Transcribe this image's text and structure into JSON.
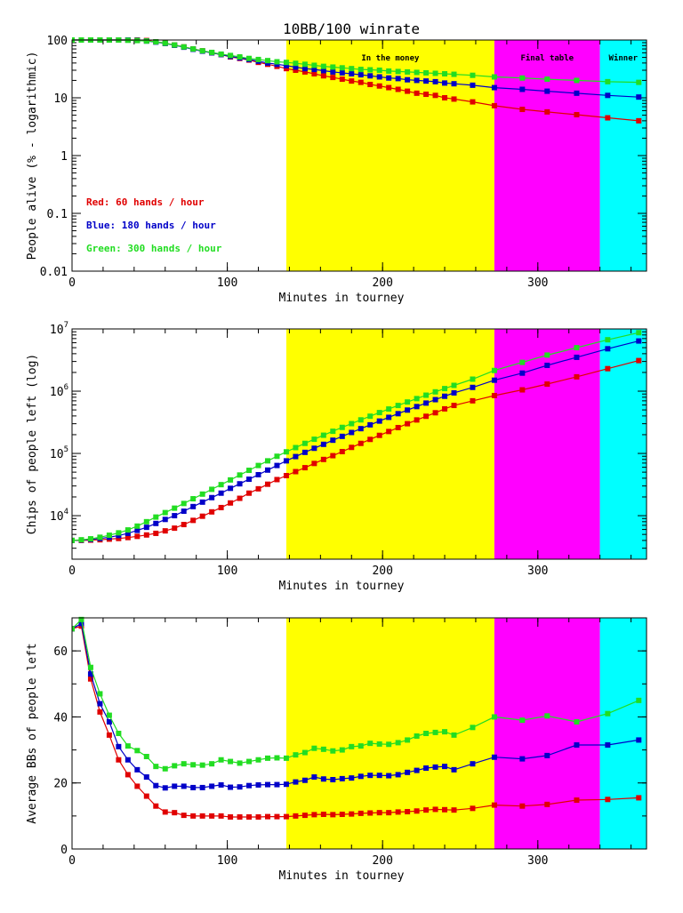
{
  "figure_title": "10BB/100 winrate",
  "chart_data": [
    {
      "type": "line",
      "title": "10BB/100 winrate",
      "xlabel": "Minutes in tourney",
      "ylabel": "People alive (% - logarithmic)",
      "yscale": "log",
      "xlim": [
        0,
        370
      ],
      "ylim": [
        0.01,
        100
      ],
      "x_ticks": [
        0,
        100,
        200,
        300
      ],
      "y_ticks": [
        0.01,
        0.1,
        1,
        10,
        100
      ],
      "y_tick_labels": [
        "0.01",
        "0.1",
        "1",
        "10",
        "100"
      ],
      "regions": [
        {
          "label": "In the money",
          "x0": 138,
          "x1": 272,
          "color": "#ffff00"
        },
        {
          "label": "Final table",
          "x0": 272,
          "x1": 340,
          "color": "#ff00ff"
        },
        {
          "label": "Winner",
          "x0": 340,
          "x1": 370,
          "color": "#00ffff"
        }
      ],
      "legend": [
        {
          "text": "Red: 60 hands / hour",
          "color": "#e00000"
        },
        {
          "text": "Blue: 180 hands / hour",
          "color": "#0000c8"
        },
        {
          "text": "Green: 300 hands / hour",
          "color": "#22dd22"
        }
      ],
      "series": [
        {
          "name": "Red",
          "color": "#e00000",
          "x": [
            0,
            6,
            12,
            18,
            24,
            30,
            36,
            42,
            48,
            54,
            60,
            66,
            72,
            78,
            84,
            90,
            96,
            102,
            108,
            114,
            120,
            126,
            132,
            138,
            144,
            150,
            156,
            162,
            168,
            174,
            180,
            186,
            192,
            198,
            204,
            210,
            216,
            222,
            228,
            234,
            240,
            246,
            258,
            272,
            290,
            306,
            325,
            345,
            365
          ],
          "y": [
            100,
            100,
            100,
            100,
            100,
            100,
            100,
            100,
            98,
            93,
            88,
            82,
            76,
            70,
            65,
            60,
            56,
            51,
            48,
            45,
            41,
            38,
            35,
            32,
            30,
            28,
            26,
            24,
            22.5,
            21,
            19.5,
            18.5,
            17,
            16,
            15,
            14,
            13,
            12,
            11.5,
            11,
            10,
            9.5,
            8.5,
            7.3,
            6.3,
            5.7,
            5.1,
            4.5,
            4.0
          ]
        },
        {
          "name": "Blue",
          "color": "#0000c8",
          "x": [
            0,
            6,
            12,
            18,
            24,
            30,
            36,
            42,
            48,
            54,
            60,
            66,
            72,
            78,
            84,
            90,
            96,
            102,
            108,
            114,
            120,
            126,
            132,
            138,
            144,
            150,
            156,
            162,
            168,
            174,
            180,
            186,
            192,
            198,
            204,
            210,
            216,
            222,
            228,
            234,
            240,
            246,
            258,
            272,
            290,
            306,
            325,
            345,
            365
          ],
          "y": [
            100,
            100,
            100,
            100,
            100,
            100,
            100,
            99,
            96,
            92,
            87,
            81,
            75,
            69,
            64,
            60,
            56,
            52,
            49,
            46,
            43,
            40,
            38,
            36,
            34,
            32,
            31,
            29.5,
            28,
            27,
            26,
            25,
            24,
            23,
            22,
            21.5,
            20.5,
            20,
            19.5,
            19,
            18,
            17.5,
            16.5,
            15,
            14,
            13,
            12,
            11,
            10.3
          ]
        },
        {
          "name": "Green",
          "color": "#22dd22",
          "x": [
            0,
            6,
            12,
            18,
            24,
            30,
            36,
            42,
            48,
            54,
            60,
            66,
            72,
            78,
            84,
            90,
            96,
            102,
            108,
            114,
            120,
            126,
            132,
            138,
            144,
            150,
            156,
            162,
            168,
            174,
            180,
            186,
            192,
            198,
            204,
            210,
            216,
            222,
            228,
            234,
            240,
            246,
            258,
            272,
            290,
            306,
            325,
            345,
            365
          ],
          "y": [
            100,
            100,
            100,
            100,
            100,
            100,
            99,
            98,
            96,
            93,
            88,
            82,
            76,
            70,
            65,
            61,
            57,
            54,
            51,
            48,
            46,
            44,
            42,
            41,
            39.5,
            38,
            36.5,
            35,
            34,
            33,
            32,
            31,
            30.5,
            30,
            29,
            28.5,
            28,
            27.5,
            27,
            26.5,
            26,
            25.5,
            24.5,
            23,
            22,
            21,
            20,
            19,
            18.5
          ]
        }
      ]
    },
    {
      "type": "line",
      "xlabel": "Minutes in tourney",
      "ylabel": "Chips of people left (log)",
      "yscale": "log",
      "xlim": [
        0,
        370
      ],
      "ylim": [
        2000,
        10000000
      ],
      "x_ticks": [
        0,
        100,
        200,
        300
      ],
      "y_ticks": [
        10000,
        100000,
        1000000,
        10000000
      ],
      "y_tick_labels": [
        [
          "10",
          "4"
        ],
        [
          "10",
          "5"
        ],
        [
          "10",
          "6"
        ],
        [
          "10",
          "7"
        ]
      ],
      "regions": [
        {
          "x0": 138,
          "x1": 272,
          "color": "#ffff00"
        },
        {
          "x0": 272,
          "x1": 340,
          "color": "#ff00ff"
        },
        {
          "x0": 340,
          "x1": 370,
          "color": "#00ffff"
        }
      ],
      "series": [
        {
          "name": "Red",
          "color": "#e00000",
          "x": [
            0,
            6,
            12,
            18,
            24,
            30,
            36,
            42,
            48,
            54,
            60,
            66,
            72,
            78,
            84,
            90,
            96,
            102,
            108,
            114,
            120,
            126,
            132,
            138,
            144,
            150,
            156,
            162,
            168,
            174,
            180,
            186,
            192,
            198,
            204,
            210,
            216,
            222,
            228,
            234,
            240,
            246,
            258,
            272,
            290,
            306,
            325,
            345,
            365
          ],
          "y": [
            4000,
            4000,
            4050,
            4100,
            4200,
            4300,
            4450,
            4650,
            4900,
            5200,
            5700,
            6300,
            7200,
            8400,
            9800,
            11500,
            13500,
            16000,
            19000,
            23000,
            27000,
            32000,
            38000,
            44000,
            51000,
            59000,
            69000,
            80000,
            92000,
            107000,
            125000,
            145000,
            168000,
            195000,
            225000,
            260000,
            300000,
            345000,
            395000,
            450000,
            520000,
            590000,
            700000,
            850000,
            1050000,
            1300000,
            1700000,
            2300000,
            3100000
          ]
        },
        {
          "name": "Blue",
          "color": "#0000c8",
          "x": [
            0,
            6,
            12,
            18,
            24,
            30,
            36,
            42,
            48,
            54,
            60,
            66,
            72,
            78,
            84,
            90,
            96,
            102,
            108,
            114,
            120,
            126,
            132,
            138,
            144,
            150,
            156,
            162,
            168,
            174,
            180,
            186,
            192,
            198,
            204,
            210,
            216,
            222,
            228,
            234,
            240,
            246,
            258,
            272,
            290,
            306,
            325,
            345,
            365
          ],
          "y": [
            4000,
            4050,
            4150,
            4300,
            4500,
            4800,
            5200,
            5800,
            6500,
            7500,
            8700,
            10000,
            11800,
            14000,
            16500,
            19500,
            23000,
            27500,
            32500,
            38500,
            45500,
            54000,
            64000,
            76000,
            89000,
            104000,
            121000,
            140000,
            163000,
            188000,
            217000,
            250000,
            288000,
            331000,
            380000,
            435000,
            497000,
            566000,
            644000,
            731000,
            829000,
            939000,
            1150000,
            1500000,
            1950000,
            2600000,
            3500000,
            4800000,
            6400000
          ]
        },
        {
          "name": "Green",
          "color": "#22dd22",
          "x": [
            0,
            6,
            12,
            18,
            24,
            30,
            36,
            42,
            48,
            54,
            60,
            66,
            72,
            78,
            84,
            90,
            96,
            102,
            108,
            114,
            120,
            126,
            132,
            138,
            144,
            150,
            156,
            162,
            168,
            174,
            180,
            186,
            192,
            198,
            204,
            210,
            216,
            222,
            228,
            234,
            240,
            246,
            258,
            272,
            290,
            306,
            325,
            345,
            365
          ],
          "y": [
            4000,
            4100,
            4250,
            4500,
            4850,
            5300,
            5900,
            6800,
            8000,
            9500,
            11200,
            13200,
            15700,
            18700,
            22200,
            26500,
            31500,
            37500,
            45000,
            53500,
            64000,
            76000,
            90000,
            106000,
            124000,
            145000,
            169000,
            196000,
            227000,
            262000,
            301000,
            346000,
            396000,
            453000,
            517000,
            589000,
            670000,
            760000,
            862000,
            975000,
            1100000,
            1240000,
            1560000,
            2150000,
            2900000,
            3800000,
            5000000,
            6700000,
            8700000
          ]
        }
      ]
    },
    {
      "type": "line",
      "xlabel": "Minutes in tourney",
      "ylabel": "Average BBs of people left",
      "yscale": "linear",
      "xlim": [
        0,
        370
      ],
      "ylim": [
        0,
        70
      ],
      "x_ticks": [
        0,
        100,
        200,
        300
      ],
      "y_ticks": [
        0,
        20,
        40,
        60
      ],
      "regions": [
        {
          "x0": 138,
          "x1": 272,
          "color": "#ffff00"
        },
        {
          "x0": 272,
          "x1": 340,
          "color": "#ff00ff"
        },
        {
          "x0": 340,
          "x1": 370,
          "color": "#00ffff"
        }
      ],
      "series": [
        {
          "name": "Red",
          "color": "#e00000",
          "x": [
            0,
            6,
            12,
            18,
            24,
            30,
            36,
            42,
            48,
            54,
            60,
            66,
            72,
            78,
            84,
            90,
            96,
            102,
            108,
            114,
            120,
            126,
            132,
            138,
            144,
            150,
            156,
            162,
            168,
            174,
            180,
            186,
            192,
            198,
            204,
            210,
            216,
            222,
            228,
            234,
            240,
            246,
            258,
            272,
            290,
            306,
            325,
            345,
            365
          ],
          "y": [
            66.7,
            67.5,
            51.5,
            41.5,
            34.5,
            27,
            22.5,
            19,
            16,
            13,
            11.2,
            11,
            10.2,
            10,
            10,
            10,
            10,
            9.7,
            9.7,
            9.7,
            9.7,
            9.8,
            9.8,
            9.8,
            10,
            10.2,
            10.4,
            10.5,
            10.4,
            10.5,
            10.6,
            10.8,
            10.9,
            11,
            11,
            11.2,
            11.3,
            11.5,
            11.8,
            12,
            11.9,
            11.8,
            12.3,
            13.3,
            13,
            13.5,
            14.8,
            15,
            15.5
          ]
        },
        {
          "name": "Blue",
          "color": "#0000c8",
          "x": [
            0,
            6,
            12,
            18,
            24,
            30,
            36,
            42,
            48,
            54,
            60,
            66,
            72,
            78,
            84,
            90,
            96,
            102,
            108,
            114,
            120,
            126,
            132,
            138,
            144,
            150,
            156,
            162,
            168,
            174,
            180,
            186,
            192,
            198,
            204,
            210,
            216,
            222,
            228,
            234,
            240,
            246,
            258,
            272,
            290,
            306,
            325,
            345,
            365
          ],
          "y": [
            66.7,
            68.3,
            53,
            44,
            38.5,
            31,
            27,
            24,
            21.8,
            19.2,
            18.5,
            19,
            19,
            18.6,
            18.6,
            19,
            19.4,
            18.7,
            18.8,
            19.2,
            19.4,
            19.5,
            19.5,
            19.6,
            20.3,
            20.8,
            21.8,
            21.2,
            21,
            21.3,
            21.5,
            22,
            22.3,
            22.3,
            22.2,
            22.5,
            23.2,
            23.8,
            24.5,
            24.8,
            25,
            24,
            25.8,
            27.8,
            27.3,
            28.3,
            31.5,
            31.5,
            33
          ]
        },
        {
          "name": "Green",
          "color": "#22dd22",
          "x": [
            0,
            6,
            12,
            18,
            24,
            30,
            36,
            42,
            48,
            54,
            60,
            66,
            72,
            78,
            84,
            90,
            96,
            102,
            108,
            114,
            120,
            126,
            132,
            138,
            144,
            150,
            156,
            162,
            168,
            174,
            180,
            186,
            192,
            198,
            204,
            210,
            216,
            222,
            228,
            234,
            240,
            246,
            258,
            272,
            290,
            306,
            325,
            345,
            365
          ],
          "y": [
            66.7,
            69.5,
            55,
            47,
            40.5,
            35,
            31.2,
            29.8,
            28,
            25,
            24.3,
            25.2,
            25.8,
            25.5,
            25.4,
            25.8,
            27,
            26.5,
            26,
            26.5,
            27,
            27.5,
            27.6,
            27.5,
            28.5,
            29.2,
            30.5,
            30.2,
            29.7,
            30,
            31,
            31.2,
            32,
            31.8,
            31.7,
            32.2,
            33,
            34.2,
            35,
            35.3,
            35.5,
            34.5,
            36.8,
            40,
            39,
            40.3,
            38.5,
            41,
            45
          ]
        }
      ]
    }
  ]
}
